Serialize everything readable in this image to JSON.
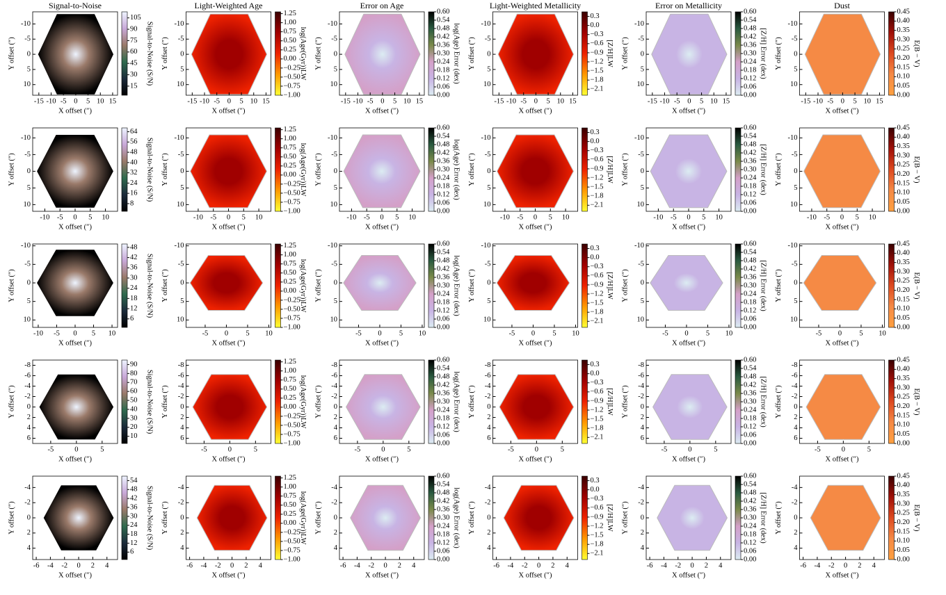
{
  "chart_data": {
    "type": "heatmap",
    "xlabel": "X offset (″)",
    "ylabel": "Y offset (″)",
    "columns": [
      {
        "title": "Signal-to-Noise",
        "colorbar_label": "Signal-to-Noise (S/N)",
        "colors": [
          "#000000",
          "#1c2b3a",
          "#2f6b4e",
          "#9a7a6a",
          "#c8a8d8",
          "#eef4ff"
        ]
      },
      {
        "title": "Light-Weighted Age",
        "colorbar_label": "log(Age(Gyr))LW",
        "colors": [
          "#ffff33",
          "#ff9900",
          "#ee2200",
          "#a00000",
          "#3a0000"
        ],
        "ticks": [
          {
            "value": -1,
            "label": "−1.00"
          },
          {
            "value": -0.75,
            "label": "−0.75"
          },
          {
            "value": -0.5,
            "label": "−0.50"
          },
          {
            "value": -0.25,
            "label": "−0.25"
          },
          {
            "value": 0,
            "label": "0.00"
          },
          {
            "value": 0.25,
            "label": "0.25"
          },
          {
            "value": 0.5,
            "label": "0.50"
          },
          {
            "value": 0.75,
            "label": "0.75"
          },
          {
            "value": 1,
            "label": "1.00"
          },
          {
            "value": 1.25,
            "label": "1.25"
          }
        ],
        "lim": [
          -1,
          1.3
        ]
      },
      {
        "title": "Error on Age",
        "colorbar_label": "log(Age) Error (dex)",
        "colors": [
          "#dcecf2",
          "#c8b4e4",
          "#d4a0c8",
          "#7a8a4a",
          "#2a5a40",
          "#000000"
        ],
        "ticks": [
          {
            "value": 0,
            "label": "0.00"
          },
          {
            "value": 0.06,
            "label": "0.06"
          },
          {
            "value": 0.12,
            "label": "0.12"
          },
          {
            "value": 0.18,
            "label": "0.18"
          },
          {
            "value": 0.24,
            "label": "0.24"
          },
          {
            "value": 0.3,
            "label": "0.30"
          },
          {
            "value": 0.36,
            "label": "0.36"
          },
          {
            "value": 0.42,
            "label": "0.42"
          },
          {
            "value": 0.48,
            "label": "0.48"
          },
          {
            "value": 0.54,
            "label": "0.54"
          },
          {
            "value": 0.6,
            "label": "0.60"
          }
        ],
        "lim": [
          0,
          0.6
        ]
      },
      {
        "title": "Light-Weighted Metallicity",
        "colorbar_label": "[Z/H]LW",
        "colors": [
          "#ffff33",
          "#ff9900",
          "#ee2200",
          "#a00000",
          "#3a0000"
        ],
        "ticks": [
          {
            "value": -2.1,
            "label": "−2.1"
          },
          {
            "value": -1.8,
            "label": "−1.8"
          },
          {
            "value": -1.5,
            "label": "−1.5"
          },
          {
            "value": -1.2,
            "label": "−1.2"
          },
          {
            "value": -0.9,
            "label": "−0.9"
          },
          {
            "value": -0.6,
            "label": "−0.6"
          },
          {
            "value": -0.3,
            "label": "−0.3"
          },
          {
            "value": 0,
            "label": "0.0"
          },
          0.3
        ],
        "lim": [
          -2.3,
          0.45
        ]
      },
      {
        "title": "Error on Metallicity",
        "colorbar_label": "[Z/H] Error (dex)",
        "colors": [
          "#dcecf2",
          "#c8b4e4",
          "#d4a0c8",
          "#7a8a4a",
          "#2a5a40",
          "#000000"
        ],
        "ticks": [
          {
            "value": 0,
            "label": "0.00"
          },
          {
            "value": 0.06,
            "label": "0.06"
          },
          {
            "value": 0.12,
            "label": "0.12"
          },
          {
            "value": 0.18,
            "label": "0.18"
          },
          {
            "value": 0.24,
            "label": "0.24"
          },
          {
            "value": 0.3,
            "label": "0.30"
          },
          {
            "value": 0.36,
            "label": "0.36"
          },
          {
            "value": 0.42,
            "label": "0.42"
          },
          {
            "value": 0.48,
            "label": "0.48"
          },
          {
            "value": 0.54,
            "label": "0.54"
          },
          {
            "value": 0.6,
            "label": "0.60"
          }
        ],
        "lim": [
          0,
          0.6
        ]
      },
      {
        "title": "Dust",
        "colorbar_label": "E(B − V)",
        "colors": [
          "#ffa040",
          "#f58a45",
          "#dd4a20",
          "#a01008",
          "#3a0000"
        ],
        "ticks": [
          {
            "value": 0,
            "label": "0.00"
          },
          {
            "value": 0.05,
            "label": "0.05"
          },
          {
            "value": 0.1,
            "label": "0.10"
          },
          {
            "value": 0.15,
            "label": "0.15"
          },
          {
            "value": 0.2,
            "label": "0.20"
          },
          {
            "value": 0.25,
            "label": "0.25"
          },
          {
            "value": 0.3,
            "label": "0.30"
          },
          {
            "value": 0.35,
            "label": "0.35"
          },
          {
            "value": 0.4,
            "label": "0.40"
          },
          {
            "value": 0.45,
            "label": "0.45"
          }
        ],
        "lim": [
          0,
          0.45
        ]
      }
    ],
    "rows": [
      {
        "xticks": [
          -15,
          -10,
          -5,
          0,
          5,
          10,
          15
        ],
        "xlim": [
          -17.5,
          17
        ],
        "yticks": [
          -10,
          -5,
          0,
          5,
          10
        ],
        "ylim": [
          13.5,
          -14
        ],
        "snr_ticks": [
          15,
          30,
          45,
          60,
          75,
          90,
          105
        ],
        "snr_lim": [
          3,
          113
        ]
      },
      {
        "xticks": [
          -10,
          -5,
          0,
          5,
          10
        ],
        "xlim": [
          -14,
          14
        ],
        "yticks": [
          -10,
          -5,
          0,
          5,
          10
        ],
        "ylim": [
          12,
          -13
        ],
        "snr_ticks": [
          8,
          16,
          24,
          32,
          40,
          48,
          56,
          64
        ],
        "snr_lim": [
          2,
          67
        ]
      },
      {
        "first_xticks": [
          -10,
          -5,
          0,
          5,
          10
        ],
        "first_xlim": [
          -11.5,
          11.5
        ],
        "xticks": [
          -5,
          0,
          5,
          10
        ],
        "xlim": [
          -9.5,
          10.5
        ],
        "yticks": [
          -10,
          -5,
          0,
          5,
          10
        ],
        "ylim": [
          12,
          -10.5
        ],
        "snr_ticks": [
          6,
          12,
          18,
          24,
          30,
          36,
          42,
          48
        ],
        "snr_lim": [
          1,
          50
        ]
      },
      {
        "xticks": [
          -5,
          0,
          5
        ],
        "xlim": [
          -8.5,
          8
        ],
        "yticks": [
          -8,
          -6,
          -4,
          -2,
          0,
          2,
          4,
          6
        ],
        "ylim": [
          7,
          -9
        ],
        "snr_ticks": [
          10,
          20,
          30,
          40,
          50,
          60,
          70,
          80,
          90
        ],
        "snr_lim": [
          2,
          95
        ]
      },
      {
        "xticks": [
          -6,
          -4,
          -2,
          0,
          2,
          4
        ],
        "xlim": [
          -6.5,
          5.5
        ],
        "yticks": [
          -4,
          -2,
          0,
          2,
          4
        ],
        "ylim": [
          5.5,
          -5.5
        ],
        "snr_ticks": [
          6,
          12,
          18,
          24,
          30,
          36,
          42,
          48,
          54
        ],
        "snr_lim": [
          1,
          57
        ]
      }
    ]
  }
}
